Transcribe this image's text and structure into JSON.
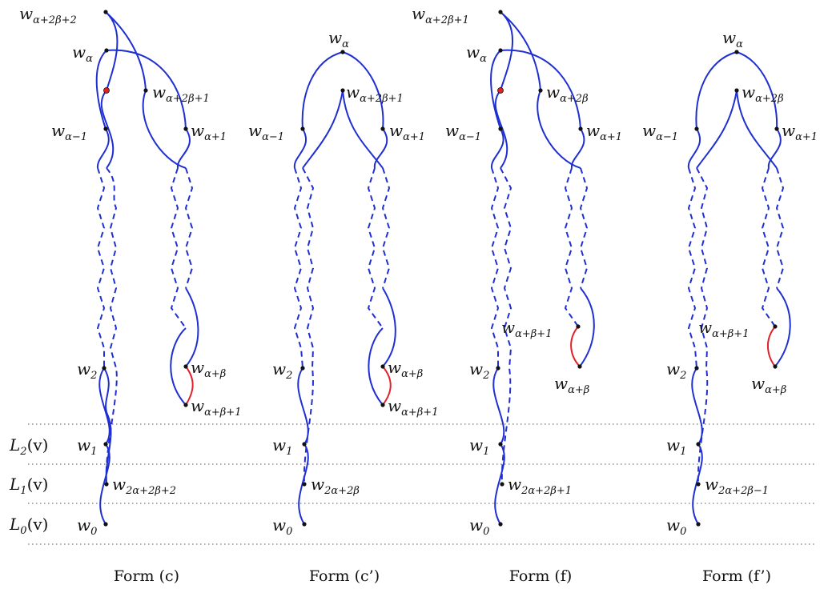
{
  "level_labels": [
    {
      "base": "L",
      "sub": "2",
      "suffix": "(v)"
    },
    {
      "base": "L",
      "sub": "1",
      "suffix": "(v)"
    },
    {
      "base": "L",
      "sub": "0",
      "suffix": "(v)"
    }
  ],
  "forms": [
    {
      "caption": "Form (c)",
      "labels": {
        "top": {
          "base": "w",
          "sub": "α+2β+2"
        },
        "alpha": {
          "base": "w",
          "sub": "α"
        },
        "inner": {
          "base": "w",
          "sub": "α+2β+1"
        },
        "alpha_minus": {
          "base": "w",
          "sub": "α−1"
        },
        "alpha_plus": {
          "base": "w",
          "sub": "α+1"
        },
        "ab": {
          "base": "w",
          "sub": "α+β"
        },
        "ab1": {
          "base": "w",
          "sub": "α+β+1"
        },
        "w2": {
          "base": "w",
          "sub": "2"
        },
        "w1": {
          "base": "w",
          "sub": "1"
        },
        "low": {
          "base": "w",
          "sub": "2α+2β+2"
        },
        "w0": {
          "base": "w",
          "sub": "0"
        }
      }
    },
    {
      "caption": "Form (c’)",
      "labels": {
        "alpha": {
          "base": "w",
          "sub": "α"
        },
        "inner": {
          "base": "w",
          "sub": "α+2β+1"
        },
        "alpha_minus": {
          "base": "w",
          "sub": "α−1"
        },
        "alpha_plus": {
          "base": "w",
          "sub": "α+1"
        },
        "ab": {
          "base": "w",
          "sub": "α+β"
        },
        "ab1": {
          "base": "w",
          "sub": "α+β+1"
        },
        "w2": {
          "base": "w",
          "sub": "2"
        },
        "w1": {
          "base": "w",
          "sub": "1"
        },
        "low": {
          "base": "w",
          "sub": "2α+2β"
        },
        "w0": {
          "base": "w",
          "sub": "0"
        }
      }
    },
    {
      "caption": "Form (f)",
      "labels": {
        "top": {
          "base": "w",
          "sub": "α+2β+1"
        },
        "alpha": {
          "base": "w",
          "sub": "α"
        },
        "inner": {
          "base": "w",
          "sub": "α+2β"
        },
        "alpha_minus": {
          "base": "w",
          "sub": "α−1"
        },
        "alpha_plus": {
          "base": "w",
          "sub": "α+1"
        },
        "ab1": {
          "base": "w",
          "sub": "α+β+1"
        },
        "ab": {
          "base": "w",
          "sub": "α+β"
        },
        "w2": {
          "base": "w",
          "sub": "2"
        },
        "w1": {
          "base": "w",
          "sub": "1"
        },
        "low": {
          "base": "w",
          "sub": "2α+2β+1"
        },
        "w0": {
          "base": "w",
          "sub": "0"
        }
      }
    },
    {
      "caption": "Form (f’)",
      "labels": {
        "alpha": {
          "base": "w",
          "sub": "α"
        },
        "inner": {
          "base": "w",
          "sub": "α+2β"
        },
        "alpha_minus": {
          "base": "w",
          "sub": "α−1"
        },
        "alpha_plus": {
          "base": "w",
          "sub": "α+1"
        },
        "ab1": {
          "base": "w",
          "sub": "α+β+1"
        },
        "ab": {
          "base": "w",
          "sub": "α+β"
        },
        "w2": {
          "base": "w",
          "sub": "2"
        },
        "w1": {
          "base": "w",
          "sub": "1"
        },
        "low": {
          "base": "w",
          "sub": "2α+2β−1"
        },
        "w0": {
          "base": "w",
          "sub": "0"
        }
      }
    }
  ],
  "colors": {
    "edge": "#1f2fd0",
    "highlight": "#e0202a",
    "vertex": "#111111"
  }
}
